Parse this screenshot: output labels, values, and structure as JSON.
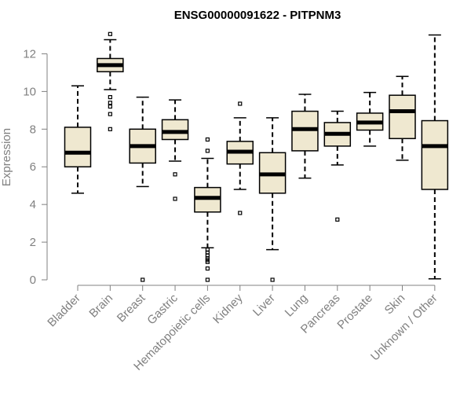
{
  "chart_data": {
    "type": "boxplot",
    "title": "ENSG00000091622 - PITPNM3",
    "ylabel": "Expression",
    "xlabel": "",
    "ylim": [
      0,
      13
    ],
    "yticks": [
      0,
      2,
      4,
      6,
      8,
      10,
      12
    ],
    "grid": false,
    "colors": {
      "box_fill": "#efe8d0",
      "stroke": "#000000",
      "axis": "#808080"
    },
    "categories": [
      "Bladder",
      "Brain",
      "Breast",
      "Gastric",
      "Hematopoietic cells",
      "Kidney",
      "Liver",
      "Lung",
      "Pancreas",
      "Prostate",
      "Skin",
      "Unknown / Other"
    ],
    "boxes": [
      {
        "category": "Bladder",
        "min": 4.6,
        "q1": 6.0,
        "median": 6.75,
        "q3": 8.1,
        "max": 10.3,
        "outliers": []
      },
      {
        "category": "Brain",
        "min": 10.1,
        "q1": 11.05,
        "median": 11.4,
        "q3": 11.75,
        "max": 12.75,
        "outliers": [
          13.05,
          9.7,
          9.4,
          9.2,
          8.8,
          8.0
        ]
      },
      {
        "category": "Breast",
        "min": 4.95,
        "q1": 6.2,
        "median": 7.1,
        "q3": 8.0,
        "max": 9.7,
        "outliers": [
          0.0
        ]
      },
      {
        "category": "Gastric",
        "min": 6.3,
        "q1": 7.45,
        "median": 7.85,
        "q3": 8.5,
        "max": 9.55,
        "outliers": [
          5.6,
          4.3
        ]
      },
      {
        "category": "Hematopoietic cells",
        "min": 1.7,
        "q1": 3.6,
        "median": 4.35,
        "q3": 4.9,
        "max": 6.45,
        "outliers": [
          7.45,
          6.85,
          1.6,
          1.45,
          1.3,
          1.15,
          1.05,
          0.95,
          0.6,
          0.0
        ]
      },
      {
        "category": "Kidney",
        "min": 4.8,
        "q1": 6.15,
        "median": 6.8,
        "q3": 7.35,
        "max": 8.6,
        "outliers": [
          9.35,
          3.55
        ]
      },
      {
        "category": "Liver",
        "min": 1.6,
        "q1": 4.6,
        "median": 5.6,
        "q3": 6.75,
        "max": 8.6,
        "outliers": [
          0.0
        ]
      },
      {
        "category": "Lung",
        "min": 5.4,
        "q1": 6.85,
        "median": 8.0,
        "q3": 8.95,
        "max": 9.85,
        "outliers": []
      },
      {
        "category": "Pancreas",
        "min": 6.1,
        "q1": 7.1,
        "median": 7.75,
        "q3": 8.35,
        "max": 8.95,
        "outliers": [
          3.2
        ]
      },
      {
        "category": "Prostate",
        "min": 7.1,
        "q1": 7.95,
        "median": 8.35,
        "q3": 8.85,
        "max": 9.95,
        "outliers": []
      },
      {
        "category": "Skin",
        "min": 6.35,
        "q1": 7.5,
        "median": 8.95,
        "q3": 9.8,
        "max": 10.8,
        "outliers": []
      },
      {
        "category": "Unknown / Other",
        "min": 0.05,
        "q1": 4.8,
        "median": 7.1,
        "q3": 8.45,
        "max": 13.0,
        "outliers": []
      }
    ]
  }
}
